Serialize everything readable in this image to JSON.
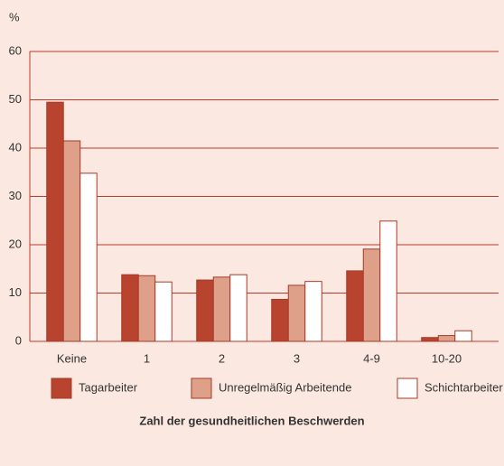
{
  "chart_data": {
    "type": "bar",
    "y_label": "%",
    "x_label": "Zahl der gesundheitlichen Beschwerden",
    "categories": [
      "Keine",
      "1",
      "2",
      "3",
      "4-9",
      "10-20"
    ],
    "series": [
      {
        "name": "Tagarbeiter",
        "color": "#b8432e",
        "values": [
          49.5,
          13.8,
          12.7,
          8.7,
          14.6,
          0.8
        ]
      },
      {
        "name": "Unregelmäßig Arbeitende",
        "color": "#dfa08a",
        "values": [
          41.5,
          13.6,
          13.3,
          11.6,
          19.1,
          1.2
        ]
      },
      {
        "name": "Schichtarbeiter",
        "color": "#ffffff",
        "values": [
          34.8,
          12.3,
          13.8,
          12.4,
          24.9,
          2.2
        ]
      }
    ],
    "ylim": [
      0,
      60
    ],
    "yticks": [
      0,
      10,
      20,
      30,
      40,
      50,
      60
    ],
    "grid": true
  }
}
